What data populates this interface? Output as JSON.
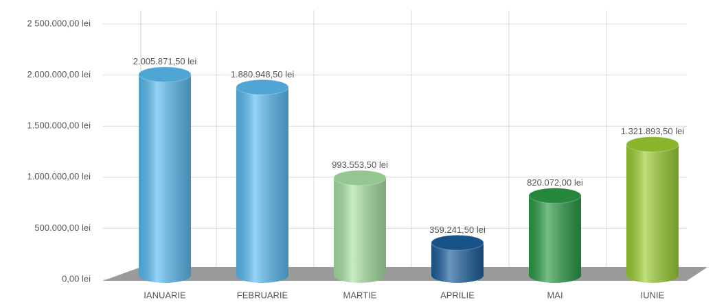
{
  "chart_data": {
    "type": "bar",
    "categories": [
      "IANUARIE",
      "FEBRUARIE",
      "MARTIE",
      "APRILIE",
      "MAI",
      "IUNIE"
    ],
    "values": [
      2005871.5,
      1880948.5,
      993553.5,
      359241.5,
      820072,
      1321893.5
    ],
    "value_labels": [
      "2.005.871,50 lei",
      "1.880.948,50 lei",
      "993.553,50 lei",
      "359.241,50 lei",
      "820.072,00 lei",
      "1.321.893,50 lei"
    ],
    "colors": [
      "#5bbcf2",
      "#5bbcf2",
      "#a9e3a4",
      "#1b5f9c",
      "#2b9b45",
      "#9dcf34"
    ],
    "ylim": [
      0,
      2500000
    ],
    "yticks": [
      {
        "value": 0,
        "label": "0,00 lei"
      },
      {
        "value": 500000,
        "label": "500.000,00 lei"
      },
      {
        "value": 1000000,
        "label": "1.000.000,00 lei"
      },
      {
        "value": 1500000,
        "label": "1.500.000,00 lei"
      },
      {
        "value": 2000000,
        "label": "2.000.000,00 lei"
      },
      {
        "value": 2500000,
        "label": "2 500.000,00 lei"
      }
    ],
    "grid": true
  }
}
